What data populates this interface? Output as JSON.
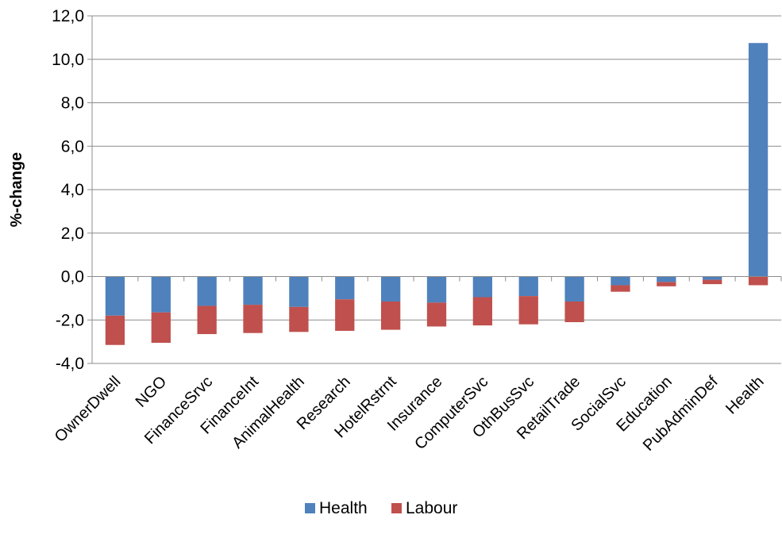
{
  "chart_data": {
    "type": "bar",
    "stacked": true,
    "categories": [
      "OwnerDwell",
      "NGO",
      "FinanceSrvc",
      "FinanceInt",
      "AnimalHealth",
      "Research",
      "HotelRstrnt",
      "Insurance",
      "ComputerSvc",
      "OthBusSvc",
      "RetailTrade",
      "SocialSvc",
      "Education",
      "PubAdminDef",
      "Health"
    ],
    "series": [
      {
        "name": "Health",
        "color": "#4F81BD",
        "values": [
          -1.8,
          -1.65,
          -1.35,
          -1.3,
          -1.4,
          -1.05,
          -1.15,
          -1.2,
          -0.95,
          -0.9,
          -1.15,
          -0.4,
          -0.25,
          -0.15,
          10.75
        ]
      },
      {
        "name": "Labour",
        "color": "#C0504D",
        "values": [
          -1.35,
          -1.4,
          -1.3,
          -1.3,
          -1.15,
          -1.45,
          -1.3,
          -1.1,
          -1.3,
          -1.3,
          -0.95,
          -0.3,
          -0.2,
          -0.2,
          -0.4
        ]
      }
    ],
    "ylabel": "%-change",
    "xlabel": "",
    "ylim": [
      -4.0,
      12.0
    ],
    "yticks": [
      "12,0",
      "10,0",
      "8,0",
      "6,0",
      "4,0",
      "2,0",
      "0,0",
      "-2,0",
      "-4,0"
    ],
    "grid": true,
    "legend_position": "bottom"
  }
}
